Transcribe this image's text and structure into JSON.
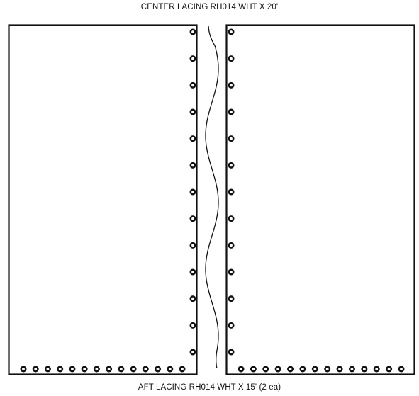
{
  "labels": {
    "center_lacing": "CENTER LACING RH014 WHT X 20'",
    "aft_lacing": "AFT LACING RH014 WHT X 15' (2 ea)"
  },
  "colors": {
    "line": "#111111",
    "background": "#ffffff"
  },
  "panels": [
    {
      "name": "left-panel",
      "side_grommets": 13,
      "side_grommet_edge": "right",
      "bottom_grommets": 14
    },
    {
      "name": "right-panel",
      "side_grommets": 13,
      "side_grommet_edge": "left",
      "bottom_grommets": 14
    }
  ]
}
